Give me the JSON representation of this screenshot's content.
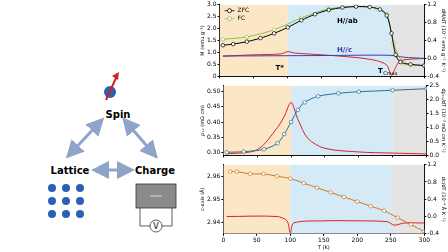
{
  "diagram": {
    "nodes": [
      {
        "label": "Spin"
      },
      {
        "label": "Lattice"
      },
      {
        "label": "Charge"
      }
    ],
    "voltmeter_label": "V"
  },
  "chart_data": [
    {
      "type": "line",
      "ylabel": "M (emu g⁻¹)",
      "y2label": "dM/dT (10⁻² emu g⁻¹ K⁻¹)",
      "xlim": [
        0,
        300
      ],
      "xticks": [
        0,
        50,
        100,
        150,
        200,
        250,
        300
      ],
      "ylim": [
        0,
        3
      ],
      "yticks": [
        0,
        0.5,
        {
          "value": 1,
          "label": "1.0"
        },
        1.5,
        {
          "value": 2,
          "label": "2.0"
        },
        2.5,
        {
          "value": 3,
          "label": "3.0"
        }
      ],
      "y2lim": [
        -0.4,
        1.2
      ],
      "y2ticks": [
        -0.4,
        {
          "value": 0,
          "label": "0.0"
        },
        0.4,
        0.8,
        1.2
      ],
      "grid": false,
      "legend": "upper left",
      "tick_labels": "y",
      "regions": [
        {
          "from": 0,
          "to": 100,
          "color": "#fbe7c6"
        },
        {
          "from": 100,
          "to": 250,
          "color": "#d4eaf6"
        },
        {
          "from": 250,
          "to": 300,
          "color": "#e4e4e4"
        }
      ],
      "annotations": [
        {
          "text": "H//ab",
          "x": 172,
          "y": 2.3,
          "axis": "y",
          "color": "#000000"
        },
        {
          "text": "H//c",
          "x": 172,
          "y": 1.1,
          "axis": "y",
          "color": "#3c3cb4"
        },
        {
          "text": "T*",
          "x": 82,
          "y": 0.35,
          "axis": "y",
          "color": "#000000"
        },
        {
          "text": "T",
          "sub": "Cmax",
          "x": 232,
          "y": 0.2,
          "axis": "y",
          "color": "#000000"
        }
      ],
      "series": [
        {
          "name": "ZFC",
          "color": "#000000",
          "marker": "circle",
          "line_style": "solid",
          "axis": "y",
          "x": [
            5,
            20,
            40,
            60,
            80,
            100,
            120,
            140,
            160,
            180,
            200,
            220,
            235,
            245,
            252,
            258,
            265,
            280,
            300
          ],
          "values": [
            1.3,
            1.35,
            1.45,
            1.6,
            1.8,
            2.05,
            2.35,
            2.6,
            2.78,
            2.88,
            2.92,
            2.9,
            2.8,
            2.55,
            1.8,
            0.9,
            0.6,
            0.5,
            0.45
          ]
        },
        {
          "name": "FC",
          "color": "#8cc63f",
          "marker": "circle",
          "line_style": "solid",
          "axis": "y",
          "x": [
            5,
            40,
            80,
            120,
            160,
            200,
            230,
            245,
            255,
            270,
            300
          ],
          "values": [
            1.55,
            1.65,
            1.95,
            2.45,
            2.82,
            2.93,
            2.85,
            2.6,
            1.4,
            0.55,
            0.45
          ]
        },
        {
          "color": "#3c3cb4",
          "marker": "none",
          "line_style": "solid",
          "axis": "y",
          "x": [
            5,
            150,
            250,
            270,
            300
          ],
          "values": [
            0.85,
            0.87,
            0.88,
            0.8,
            0.75
          ]
        },
        {
          "color": "#e02020",
          "marker": "none",
          "line_style": "solid",
          "axis": "y2",
          "x": [
            5,
            50,
            90,
            100,
            110,
            150,
            200,
            230,
            245,
            252,
            258,
            265,
            300
          ],
          "values": [
            0.05,
            0.08,
            0.1,
            0.15,
            0.12,
            0.08,
            0.02,
            -0.05,
            -0.15,
            -0.38,
            -0.2,
            -0.05,
            0
          ]
        }
      ]
    },
    {
      "type": "line",
      "ylabel": "ρₓₓ (mΩ cm)",
      "y2label": "dρₓₓ/dT (10⁻³ mΩ cm K⁻¹)",
      "xlim": [
        0,
        300
      ],
      "xticks": [
        0,
        50,
        100,
        150,
        200,
        250,
        300
      ],
      "ylim": [
        0.29,
        0.52
      ],
      "yticks": [
        {
          "value": 0.3,
          "label": "0.30"
        },
        0.35,
        {
          "value": 0.4,
          "label": "0.40"
        },
        0.45,
        {
          "value": 0.5,
          "label": "0.50"
        }
      ],
      "y2lim": [
        0,
        2.5
      ],
      "y2ticks": [
        {
          "value": 0,
          "label": "0.0"
        },
        0.5,
        {
          "value": 1,
          "label": "1.0"
        },
        1.5,
        {
          "value": 2,
          "label": "2.0"
        },
        2.5
      ],
      "grid": false,
      "tick_labels": "y",
      "regions": [
        {
          "from": 0,
          "to": 100,
          "color": "#fbe7c6"
        },
        {
          "from": 100,
          "to": 250,
          "color": "#d4eaf6"
        },
        {
          "from": 250,
          "to": 300,
          "color": "#e4e4e4"
        }
      ],
      "series": [
        {
          "color": "#2a6f9a",
          "marker": "circle",
          "line_style": "solid",
          "axis": "y",
          "x": [
            5,
            30,
            60,
            80,
            90,
            100,
            110,
            120,
            140,
            170,
            200,
            250,
            300
          ],
          "values": [
            0.3,
            0.302,
            0.31,
            0.33,
            0.36,
            0.4,
            0.44,
            0.465,
            0.485,
            0.495,
            0.5,
            0.505,
            0.51
          ]
        },
        {
          "color": "#e02020",
          "marker": "none",
          "line_style": "solid",
          "axis": "y2",
          "x": [
            5,
            50,
            80,
            90,
            100,
            110,
            125,
            150,
            200,
            250,
            300
          ],
          "values": [
            0.05,
            0.2,
            1.0,
            1.4,
            1.9,
            1.3,
            0.6,
            0.25,
            0.12,
            0.08,
            0.05
          ]
        }
      ]
    },
    {
      "type": "line",
      "xlabel": "T (K)",
      "ylabel": "c-axis (Å)",
      "y2label": "dc/dT (10⁻⁴ Å K⁻¹)",
      "xlim": [
        0,
        300
      ],
      "xticks": [
        0,
        50,
        100,
        150,
        200,
        250,
        300
      ],
      "ylim": [
        2.935,
        2.965
      ],
      "yticks": [
        2.94,
        2.95,
        2.96
      ],
      "y2lim": [
        -0.4,
        1.2
      ],
      "y2ticks": [
        -0.4,
        {
          "value": 0,
          "label": "0.0"
        },
        0.4,
        0.8,
        1.2
      ],
      "grid": false,
      "regions": [
        {
          "from": 0,
          "to": 100,
          "color": "#fbe7c6"
        },
        {
          "from": 100,
          "to": 250,
          "color": "#d4eaf6"
        },
        {
          "from": 250,
          "to": 300,
          "color": "#e4e4e4"
        }
      ],
      "series": [
        {
          "color": "#c8782a",
          "marker": "circle",
          "line_style": "solid",
          "axis": "y",
          "x": [
            10,
            20,
            40,
            60,
            80,
            100,
            120,
            140,
            160,
            180,
            200,
            220,
            240,
            260,
            280,
            300
          ],
          "values": [
            2.962,
            2.962,
            2.961,
            2.961,
            2.96,
            2.959,
            2.957,
            2.955,
            2.953,
            2.951,
            2.949,
            2.947,
            2.945,
            2.942,
            2.939,
            2.936
          ]
        },
        {
          "color": "#e02020",
          "marker": "none",
          "line_style": "solid",
          "axis": "y2",
          "x": [
            5,
            80,
            95,
            100,
            105,
            150,
            200,
            245,
            255,
            270,
            300
          ],
          "values": [
            0,
            0,
            -0.1,
            -0.38,
            -0.15,
            -0.1,
            -0.1,
            -0.12,
            -0.2,
            -0.15,
            -0.15
          ]
        }
      ]
    }
  ]
}
